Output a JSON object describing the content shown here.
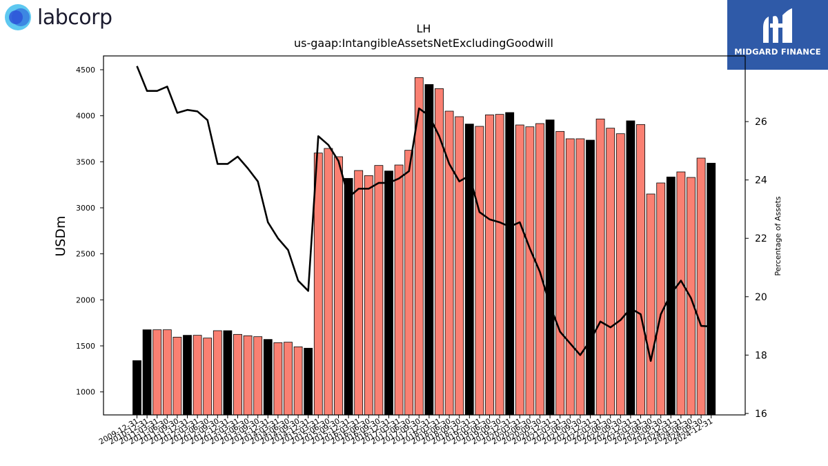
{
  "logos": {
    "left_text": "labcorp",
    "right_text": "MIDGARD FINANCE"
  },
  "colors": {
    "bar_normal": "#fa8072",
    "bar_year_end": "#000000",
    "line": "#000000",
    "logo_blue": "#2f5aa8"
  },
  "chart_data": {
    "type": "bar",
    "title": "LH",
    "subtitle": "us-gaap:IntangibleAssetsNetExcludingGoodwill",
    "ylabel": "USDm",
    "y2label": "Percentage of Assets",
    "ylim": [
      750,
      4650
    ],
    "y2lim": [
      15.95,
      28.25
    ],
    "yticks": [
      1000,
      1500,
      2000,
      2500,
      3000,
      3500,
      4000,
      4500
    ],
    "y2ticks": [
      16,
      18,
      20,
      22,
      24,
      26
    ],
    "categories": [
      "2009-12-31",
      "2010-12-31",
      "2011-03-31",
      "2011-06-30",
      "2011-09-30",
      "2011-12-31",
      "2012-03-31",
      "2012-06-30",
      "2012-09-30",
      "2012-12-31",
      "2013-03-31",
      "2013-06-30",
      "2013-09-30",
      "2013-12-31",
      "2014-03-31",
      "2014-06-30",
      "2014-09-30",
      "2014-12-31",
      "2015-03-31",
      "2015-06-30",
      "2015-09-30",
      "2015-12-31",
      "2016-03-31",
      "2016-06-30",
      "2016-09-30",
      "2016-12-31",
      "2017-03-31",
      "2017-06-30",
      "2017-09-30",
      "2017-12-31",
      "2018-03-31",
      "2018-06-30",
      "2018-09-30",
      "2018-12-31",
      "2019-03-31",
      "2019-06-30",
      "2019-09-30",
      "2019-12-31",
      "2020-03-31",
      "2020-06-30",
      "2020-09-30",
      "2020-12-31",
      "2021-03-31",
      "2021-06-30",
      "2021-09-30",
      "2021-12-31",
      "2022-03-31",
      "2022-06-30",
      "2022-09-30",
      "2022-12-31",
      "2023-03-31",
      "2023-06-30",
      "2023-09-30",
      "2023-12-31",
      "2024-03-31",
      "2024-06-30",
      "2024-09-30",
      "2024-12-31"
    ],
    "series": [
      {
        "values": [
          1340,
          1675,
          1675,
          1675,
          1595,
          1615,
          1615,
          1585,
          1665,
          1665,
          1625,
          1610,
          1600,
          1570,
          1535,
          1540,
          1490,
          1475,
          3595,
          3645,
          3555,
          3320,
          3405,
          3350,
          3460,
          3400,
          3465,
          3625,
          4415,
          4340,
          4295,
          4050,
          3990,
          3910,
          3885,
          4010,
          4015,
          4035,
          3900,
          3880,
          3915,
          3955,
          3830,
          3750,
          3750,
          3735,
          3965,
          3865,
          3805,
          3945,
          3905,
          3150,
          3270,
          3335,
          3390,
          3330,
          3540,
          3485
        ]
      },
      {
        "type": "line",
        "axis": "right",
        "values": [
          27.9,
          27.05,
          27.05,
          27.2,
          26.3,
          26.4,
          26.35,
          26.05,
          24.55,
          24.55,
          24.8,
          24.4,
          23.95,
          22.55,
          22.0,
          21.6,
          20.55,
          20.2,
          25.5,
          25.2,
          24.65,
          23.4,
          23.7,
          23.7,
          23.9,
          23.9,
          24.05,
          24.3,
          26.45,
          26.2,
          25.5,
          24.55,
          23.95,
          24.15,
          22.9,
          22.65,
          22.55,
          22.4,
          22.55,
          21.65,
          20.85,
          19.7,
          18.8,
          18.4,
          18.0,
          18.5,
          19.15,
          18.95,
          19.2,
          19.6,
          19.4,
          17.8,
          19.4,
          20.1,
          20.55,
          19.95,
          19.0,
          18.98
        ]
      }
    ],
    "year_end_categories": [
      "2009-12-31",
      "2010-12-31",
      "2011-12-31",
      "2012-12-31",
      "2013-12-31",
      "2014-12-31",
      "2015-12-31",
      "2016-12-31",
      "2017-12-31",
      "2018-12-31",
      "2019-12-31",
      "2020-12-31",
      "2021-12-31",
      "2022-12-31",
      "2023-12-31",
      "2024-12-31"
    ],
    "grid": false
  }
}
